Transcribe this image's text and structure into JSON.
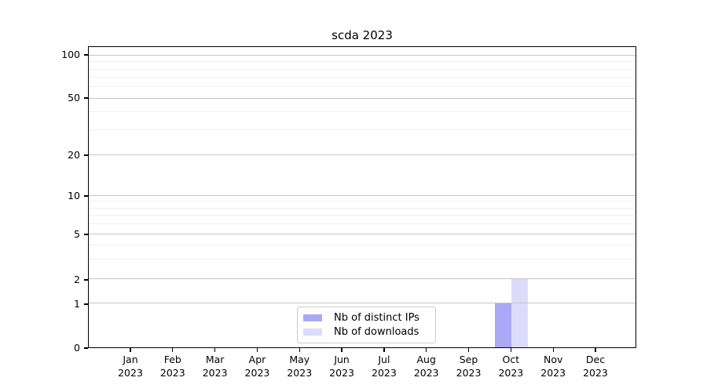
{
  "chart_data": {
    "type": "bar",
    "title": "scda 2023",
    "x_tick_months": [
      "Jan",
      "Feb",
      "Mar",
      "Apr",
      "May",
      "Jun",
      "Jul",
      "Aug",
      "Sep",
      "Oct",
      "Nov",
      "Dec"
    ],
    "x_tick_year": "2023",
    "yticks": [
      0,
      1,
      2,
      5,
      10,
      20,
      50,
      100
    ],
    "yscale": "symlog",
    "ylim": [
      0,
      115
    ],
    "grid": true,
    "legend_position": "lower center",
    "series": [
      {
        "name": "Nb of distinct IPs",
        "color": "#a9a9f6",
        "values": [
          0,
          0,
          0,
          0,
          0,
          0,
          0,
          0,
          0,
          1,
          0,
          0
        ]
      },
      {
        "name": "Nb of downloads",
        "color": "#dcdcfa",
        "values": [
          0,
          0,
          0,
          0,
          0,
          0,
          0,
          0,
          0,
          2,
          0,
          0
        ]
      }
    ]
  },
  "legend": {
    "items": [
      {
        "label": "Nb of distinct IPs",
        "color": "#a9a9f6"
      },
      {
        "label": "Nb of downloads",
        "color": "#dcdcfa"
      }
    ]
  }
}
